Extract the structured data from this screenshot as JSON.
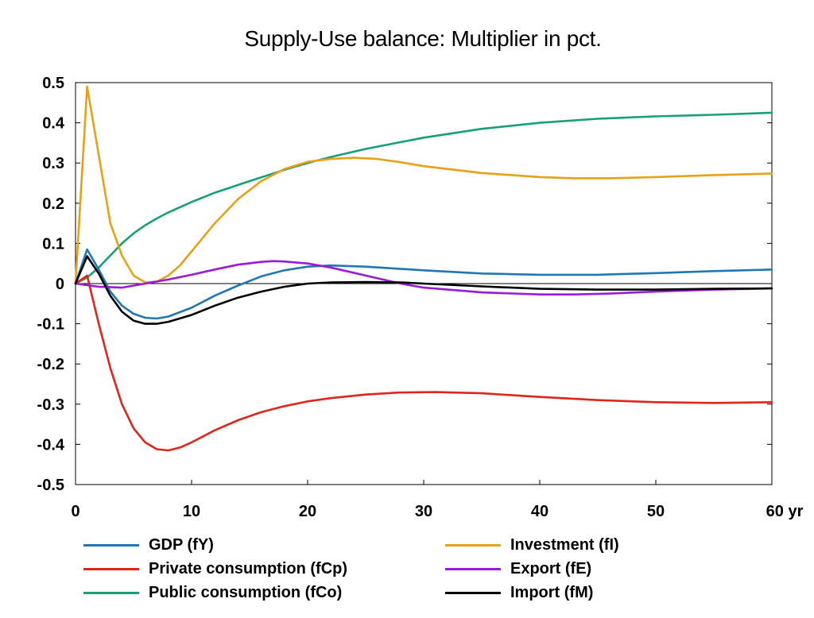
{
  "chart_data": {
    "type": "line",
    "title": "Supply-Use balance: Multiplier in pct.",
    "xlabel": "",
    "ylabel": "",
    "xlim": [
      0,
      60
    ],
    "ylim": [
      -0.5,
      0.5
    ],
    "x_ticks": [
      0,
      10,
      20,
      30,
      40,
      50,
      60
    ],
    "x_tick_labels": [
      "0",
      "10",
      "20",
      "30",
      "40",
      "50",
      "60 yr"
    ],
    "y_ticks": [
      0.5,
      0.4,
      0.3,
      0.2,
      0.1,
      0,
      -0.1,
      -0.2,
      -0.3,
      -0.4,
      -0.5
    ],
    "y_tick_labels": [
      "0.5",
      "0.4",
      "0.3",
      "0.2",
      "0.1",
      "0",
      "-0.1",
      "-0.2",
      "-0.3",
      "-0.4",
      "-0.5"
    ],
    "zero_line": true,
    "grid": false,
    "legend_position": "bottom",
    "series": [
      {
        "name": "GDP (fY)",
        "color": "#1f77b4",
        "x": [
          0,
          1,
          2,
          3,
          4,
          5,
          6,
          7,
          8,
          10,
          12,
          14,
          16,
          18,
          20,
          22,
          25,
          30,
          35,
          40,
          45,
          50,
          55,
          60
        ],
        "y": [
          0,
          0.085,
          0.035,
          -0.02,
          -0.055,
          -0.075,
          -0.085,
          -0.087,
          -0.082,
          -0.06,
          -0.03,
          -0.005,
          0.018,
          0.033,
          0.042,
          0.045,
          0.042,
          0.033,
          0.025,
          0.022,
          0.022,
          0.026,
          0.031,
          0.035
        ]
      },
      {
        "name": "Investment (fI)",
        "color": "#e6a117",
        "x": [
          0,
          1,
          2,
          3,
          4,
          5,
          6,
          7,
          8,
          9,
          10,
          12,
          14,
          16,
          18,
          20,
          22,
          24,
          26,
          28,
          30,
          35,
          40,
          43,
          46,
          50,
          55,
          60
        ],
        "y": [
          0,
          0.49,
          0.32,
          0.15,
          0.07,
          0.02,
          0.003,
          0.005,
          0.02,
          0.045,
          0.08,
          0.15,
          0.21,
          0.255,
          0.285,
          0.303,
          0.31,
          0.313,
          0.31,
          0.302,
          0.292,
          0.275,
          0.265,
          0.262,
          0.262,
          0.265,
          0.27,
          0.274
        ]
      },
      {
        "name": "Private consumption (fCp)",
        "color": "#e0251b",
        "x": [
          0,
          1,
          2,
          3,
          4,
          5,
          6,
          7,
          8,
          9,
          10,
          12,
          14,
          16,
          18,
          20,
          22,
          25,
          28,
          31,
          35,
          40,
          45,
          50,
          55,
          60
        ],
        "y": [
          0,
          0.02,
          -0.1,
          -0.21,
          -0.3,
          -0.36,
          -0.395,
          -0.412,
          -0.415,
          -0.408,
          -0.395,
          -0.365,
          -0.34,
          -0.32,
          -0.305,
          -0.293,
          -0.285,
          -0.276,
          -0.271,
          -0.27,
          -0.273,
          -0.282,
          -0.29,
          -0.295,
          -0.297,
          -0.295
        ]
      },
      {
        "name": "Export (fE)",
        "color": "#9b1ad9",
        "x": [
          0,
          2,
          4,
          6,
          8,
          10,
          12,
          14,
          16,
          17,
          18,
          20,
          22,
          25,
          28,
          30,
          35,
          40,
          43,
          46,
          50,
          55,
          60
        ],
        "y": [
          0,
          -0.008,
          -0.01,
          0.0,
          0.01,
          0.022,
          0.035,
          0.047,
          0.054,
          0.056,
          0.055,
          0.05,
          0.04,
          0.02,
          0.0,
          -0.01,
          -0.022,
          -0.027,
          -0.027,
          -0.025,
          -0.02,
          -0.015,
          -0.012
        ]
      },
      {
        "name": "Public consumption (fCo)",
        "color": "#16a07a",
        "x": [
          0,
          1,
          2,
          3,
          4,
          5,
          6,
          7,
          8,
          10,
          12,
          15,
          18,
          20,
          22,
          25,
          30,
          35,
          40,
          45,
          50,
          55,
          60
        ],
        "y": [
          0,
          0.015,
          0.04,
          0.07,
          0.1,
          0.125,
          0.145,
          0.162,
          0.177,
          0.203,
          0.226,
          0.255,
          0.283,
          0.3,
          0.315,
          0.335,
          0.363,
          0.385,
          0.4,
          0.41,
          0.416,
          0.42,
          0.425
        ]
      },
      {
        "name": "Import (fM)",
        "color": "#000000",
        "x": [
          0,
          1,
          2,
          3,
          4,
          5,
          6,
          7,
          8,
          10,
          12,
          14,
          16,
          18,
          20,
          22,
          25,
          28,
          30,
          35,
          40,
          45,
          50,
          55,
          60
        ],
        "y": [
          0,
          0.068,
          0.025,
          -0.03,
          -0.07,
          -0.092,
          -0.1,
          -0.1,
          -0.095,
          -0.078,
          -0.055,
          -0.035,
          -0.02,
          -0.008,
          0.0,
          0.003,
          0.004,
          0.003,
          0.0,
          -0.007,
          -0.013,
          -0.015,
          -0.015,
          -0.013,
          -0.012
        ]
      }
    ]
  }
}
